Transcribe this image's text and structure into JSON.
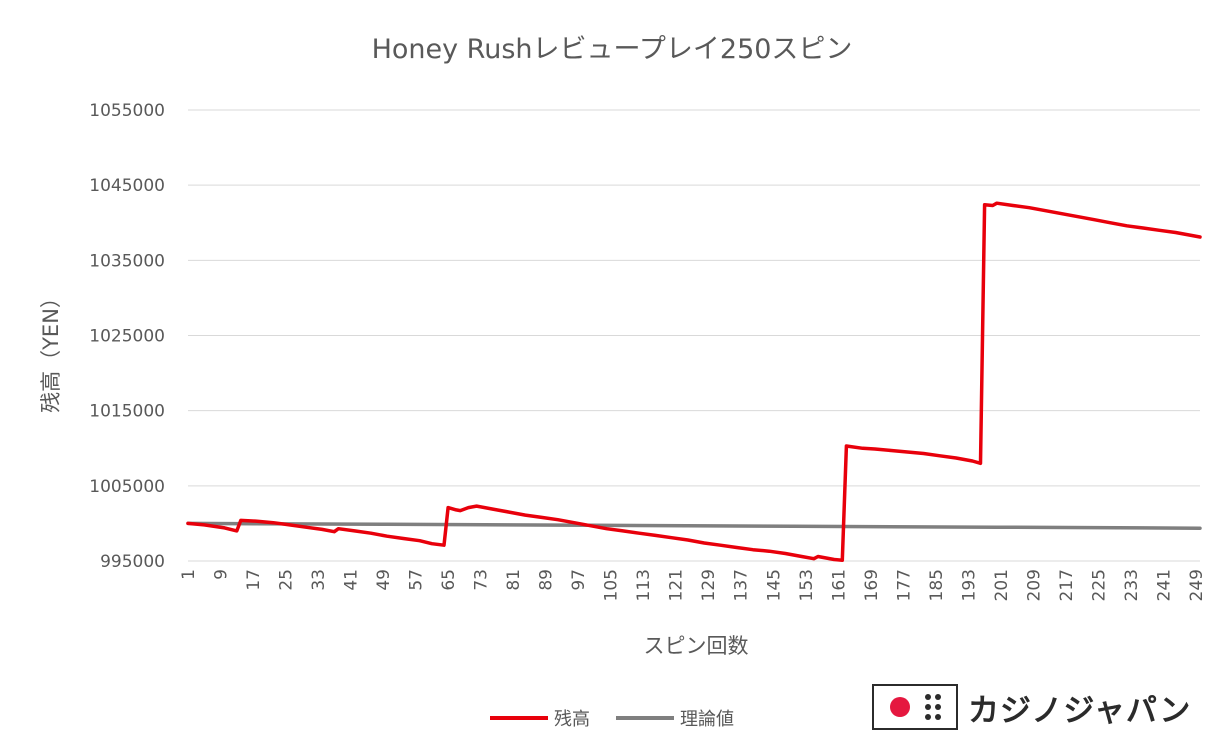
{
  "chart_data": {
    "type": "line",
    "title": "Honey Rushレビュープレイ250スピン",
    "xlabel": "スピン回数",
    "ylabel": "残高（YEN）",
    "ylim": [
      995000,
      1055000
    ],
    "xlim": [
      1,
      250
    ],
    "ytick_values": [
      995000,
      1005000,
      1015000,
      1025000,
      1035000,
      1045000,
      1055000
    ],
    "ytick_labels": [
      "995000",
      "1005000",
      "1015000",
      "1025000",
      "1035000",
      "1045000",
      "1055000"
    ],
    "xtick_values": [
      1,
      9,
      17,
      25,
      33,
      41,
      49,
      57,
      65,
      73,
      81,
      89,
      97,
      105,
      113,
      121,
      129,
      137,
      145,
      153,
      161,
      169,
      177,
      185,
      193,
      201,
      209,
      217,
      225,
      233,
      241,
      249
    ],
    "xtick_labels": [
      "1",
      "9",
      "17",
      "25",
      "33",
      "41",
      "49",
      "57",
      "65",
      "73",
      "81",
      "89",
      "97",
      "105",
      "113",
      "121",
      "129",
      "137",
      "145",
      "153",
      "161",
      "169",
      "177",
      "185",
      "193",
      "201",
      "209",
      "217",
      "225",
      "233",
      "241",
      "249"
    ],
    "grid": true,
    "legend_position": "bottom",
    "series": [
      {
        "name": "残高",
        "color": "#e8000b",
        "points": [
          [
            1,
            1000000
          ],
          [
            5,
            999800
          ],
          [
            10,
            999400
          ],
          [
            13,
            999000
          ],
          [
            14,
            1000400
          ],
          [
            18,
            1000300
          ],
          [
            22,
            1000100
          ],
          [
            26,
            999800
          ],
          [
            30,
            999500
          ],
          [
            34,
            999200
          ],
          [
            37,
            998900
          ],
          [
            38,
            999300
          ],
          [
            42,
            999000
          ],
          [
            46,
            998700
          ],
          [
            50,
            998300
          ],
          [
            54,
            998000
          ],
          [
            58,
            997700
          ],
          [
            61,
            997300
          ],
          [
            64,
            997100
          ],
          [
            65,
            1002100
          ],
          [
            67,
            1001800
          ],
          [
            68,
            1001700
          ],
          [
            70,
            1002100
          ],
          [
            72,
            1002300
          ],
          [
            76,
            1001900
          ],
          [
            80,
            1001500
          ],
          [
            84,
            1001100
          ],
          [
            88,
            1000800
          ],
          [
            92,
            1000500
          ],
          [
            96,
            1000100
          ],
          [
            100,
            999700
          ],
          [
            104,
            999300
          ],
          [
            108,
            999000
          ],
          [
            112,
            998700
          ],
          [
            116,
            998400
          ],
          [
            120,
            998100
          ],
          [
            124,
            997800
          ],
          [
            128,
            997400
          ],
          [
            132,
            997100
          ],
          [
            136,
            996800
          ],
          [
            140,
            996500
          ],
          [
            144,
            996300
          ],
          [
            148,
            996000
          ],
          [
            152,
            995600
          ],
          [
            155,
            995300
          ],
          [
            156,
            995600
          ],
          [
            160,
            995200
          ],
          [
            162,
            995100
          ],
          [
            163,
            1010300
          ],
          [
            167,
            1010000
          ],
          [
            170,
            1009900
          ],
          [
            174,
            1009700
          ],
          [
            178,
            1009500
          ],
          [
            182,
            1009300
          ],
          [
            186,
            1009000
          ],
          [
            190,
            1008700
          ],
          [
            194,
            1008300
          ],
          [
            196,
            1008000
          ],
          [
            197,
            1042400
          ],
          [
            199,
            1042300
          ],
          [
            200,
            1042600
          ],
          [
            204,
            1042300
          ],
          [
            208,
            1042000
          ],
          [
            212,
            1041600
          ],
          [
            216,
            1041200
          ],
          [
            220,
            1040800
          ],
          [
            224,
            1040400
          ],
          [
            228,
            1040000
          ],
          [
            232,
            1039600
          ],
          [
            236,
            1039300
          ],
          [
            240,
            1039000
          ],
          [
            244,
            1038700
          ],
          [
            248,
            1038300
          ],
          [
            250,
            1038100
          ]
        ]
      },
      {
        "name": "理論値",
        "color": "#7f7f7f",
        "points": [
          [
            1,
            1000000
          ],
          [
            50,
            999880
          ],
          [
            100,
            999750
          ],
          [
            150,
            999620
          ],
          [
            200,
            999500
          ],
          [
            250,
            999370
          ]
        ]
      }
    ]
  },
  "logo": {
    "text": "カジノジャパン",
    "accent_color": "#e5173f",
    "ink_color": "#2b2b2b"
  }
}
